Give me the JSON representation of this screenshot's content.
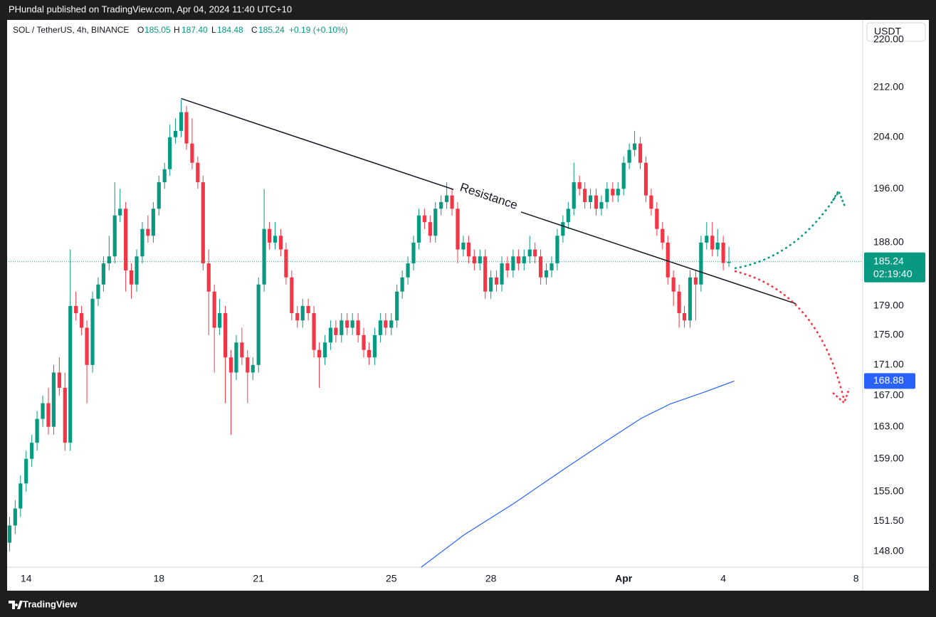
{
  "header": {
    "publisher": "PHundal published on TradingView.com, Apr 04, 2024 11:40 UTC+10",
    "footer": "TradingView"
  },
  "chart_data": {
    "type": "candlestick",
    "title": "SOL / TetherUS, 4h, BINANCE",
    "ohlc_names": [
      "O",
      "H",
      "L",
      "C"
    ],
    "ohlc_labels": [
      "185.05",
      "187.40",
      "184.48",
      "185.24"
    ],
    "change_label": "+0.19 (+0.10%)",
    "currency": "USDT",
    "countdown": "02:19:40",
    "up_color": "#089981",
    "down_color": "#f23645",
    "log_scale": true,
    "grid": false,
    "ylim": [
      146.2,
      223.4
    ],
    "yticks": [
      {
        "value": 148,
        "label": "148.00"
      },
      {
        "value": 151.5,
        "label": "151.50"
      },
      {
        "value": 155,
        "label": "155.00"
      },
      {
        "value": 159,
        "label": "159.00"
      },
      {
        "value": 163,
        "label": "163.00"
      },
      {
        "value": 167,
        "label": "167.00"
      },
      {
        "value": 171,
        "label": "171.00"
      },
      {
        "value": 175,
        "label": "175.00"
      },
      {
        "value": 179,
        "label": "179.00"
      },
      {
        "value": 188,
        "label": "188.00"
      },
      {
        "value": 196,
        "label": "196.00"
      },
      {
        "value": 204,
        "label": "204.00"
      },
      {
        "value": 212,
        "label": "212.00"
      },
      {
        "value": 220,
        "label": "220.00"
      }
    ],
    "xlim": [
      13.47,
      39.2
    ],
    "xticks": [
      14,
      18,
      21,
      25,
      28,
      {
        "value": 32,
        "label": "Apr"
      },
      {
        "value": 35,
        "label": "4"
      },
      {
        "value": 39,
        "label": "8"
      }
    ],
    "x": [
      13.5,
      13.67,
      13.83,
      14,
      14.17,
      14.33,
      14.5,
      14.67,
      14.83,
      15,
      15.17,
      15.33,
      15.5,
      15.67,
      15.83,
      16,
      16.17,
      16.33,
      16.5,
      16.67,
      16.83,
      17,
      17.17,
      17.33,
      17.5,
      17.67,
      17.83,
      18,
      18.17,
      18.33,
      18.5,
      18.67,
      18.83,
      19,
      19.17,
      19.33,
      19.5,
      19.67,
      19.83,
      20,
      20.17,
      20.33,
      20.5,
      20.67,
      20.83,
      21,
      21.17,
      21.33,
      21.5,
      21.67,
      21.83,
      22,
      22.17,
      22.33,
      22.5,
      22.67,
      22.83,
      23,
      23.17,
      23.33,
      23.5,
      23.67,
      23.83,
      24,
      24.17,
      24.33,
      24.5,
      24.67,
      24.83,
      25,
      25.17,
      25.33,
      25.5,
      25.67,
      25.83,
      26,
      26.17,
      26.33,
      26.5,
      26.67,
      26.83,
      27,
      27.17,
      27.33,
      27.5,
      27.67,
      27.83,
      28,
      28.17,
      28.33,
      28.5,
      28.67,
      28.83,
      29,
      29.17,
      29.33,
      29.5,
      29.67,
      29.83,
      30,
      30.17,
      30.33,
      30.5,
      30.67,
      30.83,
      31,
      31.17,
      31.33,
      31.5,
      31.67,
      31.83,
      32,
      32.17,
      32.33,
      32.5,
      32.67,
      32.83,
      33,
      33.17,
      33.33,
      33.5,
      33.67,
      33.83,
      34,
      34.17,
      34.33,
      34.5,
      34.67,
      34.83,
      35,
      35.17
    ],
    "ohlc": [
      [
        149,
        152,
        148,
        151
      ],
      [
        151,
        154,
        150,
        153
      ],
      [
        153,
        157,
        152,
        156
      ],
      [
        156,
        160,
        155,
        159
      ],
      [
        159,
        162,
        158,
        161
      ],
      [
        161,
        165,
        160,
        164
      ],
      [
        164,
        167,
        163,
        166
      ],
      [
        166,
        168,
        162,
        163
      ],
      [
        163,
        171,
        162,
        170
      ],
      [
        170,
        172,
        167,
        168
      ],
      [
        168,
        170,
        160,
        161
      ],
      [
        161,
        187,
        160,
        179
      ],
      [
        179,
        181,
        177,
        178
      ],
      [
        178,
        179,
        175,
        176
      ],
      [
        176,
        177,
        166,
        171
      ],
      [
        171,
        181,
        170,
        180
      ],
      [
        180,
        183,
        179,
        182
      ],
      [
        182,
        186,
        181,
        185
      ],
      [
        185,
        189,
        184,
        186
      ],
      [
        186,
        197,
        185,
        192
      ],
      [
        192,
        196,
        191,
        193
      ],
      [
        193,
        194,
        181,
        184
      ],
      [
        184,
        185,
        180,
        182
      ],
      [
        182,
        187,
        181,
        186
      ],
      [
        186,
        191,
        185,
        190
      ],
      [
        190,
        192,
        188,
        189
      ],
      [
        189,
        194,
        188,
        193
      ],
      [
        193,
        198,
        192,
        197
      ],
      [
        197,
        200,
        196,
        199
      ],
      [
        199,
        206,
        198,
        204
      ],
      [
        204,
        207,
        203,
        205
      ],
      [
        205,
        210,
        204,
        208
      ],
      [
        208,
        209,
        202,
        203
      ],
      [
        203,
        207,
        199,
        200
      ],
      [
        200,
        201,
        196,
        197
      ],
      [
        197,
        198,
        184,
        185
      ],
      [
        185,
        187,
        175,
        181
      ],
      [
        181,
        182,
        170,
        176
      ],
      [
        176,
        180,
        175,
        178
      ],
      [
        178,
        179,
        166,
        172
      ],
      [
        172,
        173,
        162,
        170
      ],
      [
        170,
        175,
        169,
        174
      ],
      [
        174,
        176,
        171,
        172
      ],
      [
        172,
        173,
        166,
        170
      ],
      [
        170,
        172,
        169,
        171
      ],
      [
        171,
        183,
        170,
        182
      ],
      [
        182,
        196,
        181,
        190
      ],
      [
        190,
        191,
        187,
        188
      ],
      [
        188,
        191,
        187,
        189
      ],
      [
        189,
        190,
        186,
        187
      ],
      [
        187,
        188,
        182,
        183
      ],
      [
        183,
        184,
        177,
        178
      ],
      [
        178,
        179,
        176,
        177
      ],
      [
        177,
        180,
        176,
        179
      ],
      [
        179,
        180,
        177,
        178
      ],
      [
        178,
        179,
        172,
        173
      ],
      [
        173,
        174,
        168,
        172
      ],
      [
        172,
        175,
        171,
        174
      ],
      [
        174,
        177,
        173,
        176
      ],
      [
        176,
        177,
        174,
        175
      ],
      [
        175,
        178,
        174,
        177
      ],
      [
        177,
        178,
        175,
        176
      ],
      [
        176,
        178,
        175,
        177
      ],
      [
        177,
        178,
        174,
        175
      ],
      [
        175,
        176,
        172,
        173
      ],
      [
        173,
        174,
        171,
        172
      ],
      [
        172,
        176,
        171,
        175
      ],
      [
        175,
        178,
        174,
        177
      ],
      [
        177,
        178,
        175,
        176
      ],
      [
        176,
        178,
        175,
        177
      ],
      [
        177,
        182,
        176,
        181
      ],
      [
        181,
        184,
        180,
        183
      ],
      [
        183,
        186,
        182,
        185
      ],
      [
        185,
        189,
        184,
        188
      ],
      [
        188,
        193,
        187,
        192
      ],
      [
        192,
        193,
        190,
        191
      ],
      [
        191,
        192,
        188,
        189
      ],
      [
        189,
        194,
        188,
        193
      ],
      [
        193,
        195,
        192,
        194
      ],
      [
        194,
        197,
        193,
        195
      ],
      [
        195,
        196,
        192,
        193
      ],
      [
        193,
        194,
        185,
        187
      ],
      [
        187,
        189,
        186,
        188
      ],
      [
        188,
        189,
        185,
        186
      ],
      [
        186,
        187,
        184,
        185
      ],
      [
        185,
        187,
        184,
        186
      ],
      [
        186,
        187,
        180,
        181
      ],
      [
        181,
        184,
        180,
        183
      ],
      [
        183,
        184,
        181,
        182
      ],
      [
        182,
        186,
        181,
        185
      ],
      [
        185,
        186,
        183,
        184
      ],
      [
        184,
        187,
        183,
        186
      ],
      [
        186,
        187,
        184,
        185
      ],
      [
        185,
        187,
        184,
        186
      ],
      [
        186,
        189,
        185,
        187
      ],
      [
        187,
        188,
        185,
        186
      ],
      [
        186,
        187,
        182,
        183
      ],
      [
        183,
        185,
        182,
        184
      ],
      [
        184,
        186,
        183,
        185
      ],
      [
        185,
        190,
        184,
        189
      ],
      [
        189,
        192,
        188,
        191
      ],
      [
        191,
        194,
        190,
        193
      ],
      [
        193,
        200,
        192,
        197
      ],
      [
        197,
        198,
        195,
        196
      ],
      [
        196,
        197,
        193,
        194
      ],
      [
        194,
        196,
        193,
        195
      ],
      [
        195,
        196,
        192,
        193
      ],
      [
        193,
        195,
        192,
        194
      ],
      [
        194,
        197,
        193,
        196
      ],
      [
        196,
        197,
        194,
        195
      ],
      [
        195,
        197,
        194,
        196
      ],
      [
        196,
        201,
        195,
        200
      ],
      [
        200,
        203,
        199,
        202
      ],
      [
        202,
        205,
        201,
        203
      ],
      [
        203,
        204,
        199,
        200
      ],
      [
        200,
        201,
        194,
        195
      ],
      [
        195,
        196,
        192,
        193
      ],
      [
        193,
        194,
        189,
        190
      ],
      [
        190,
        191,
        187,
        188
      ],
      [
        188,
        189,
        182,
        183
      ],
      [
        183,
        184,
        179,
        181
      ],
      [
        181,
        182,
        176,
        178
      ],
      [
        178,
        179,
        176,
        177
      ],
      [
        177,
        184,
        176,
        183
      ],
      [
        183,
        184,
        177,
        182
      ],
      [
        182,
        189,
        181,
        188
      ],
      [
        188,
        191,
        187,
        189
      ],
      [
        189,
        191,
        186,
        187
      ],
      [
        187,
        190,
        186,
        188
      ],
      [
        188,
        189,
        184,
        185.05
      ],
      [
        185.05,
        187.4,
        184.48,
        185.24
      ]
    ],
    "ma": {
      "color": "#2962ff",
      "x": [
        25.9,
        27.19,
        28.69,
        30.19,
        31.47,
        32.54,
        33.4,
        34.47,
        35.33
      ],
      "values": [
        146.2,
        149.9,
        153.6,
        157.7,
        161.2,
        164.1,
        165.9,
        167.5,
        168.88
      ]
    },
    "trendline": {
      "label": "Resistance",
      "start": [
        18.67,
        210.2
      ],
      "end": [
        37.19,
        179.3
      ]
    }
  }
}
